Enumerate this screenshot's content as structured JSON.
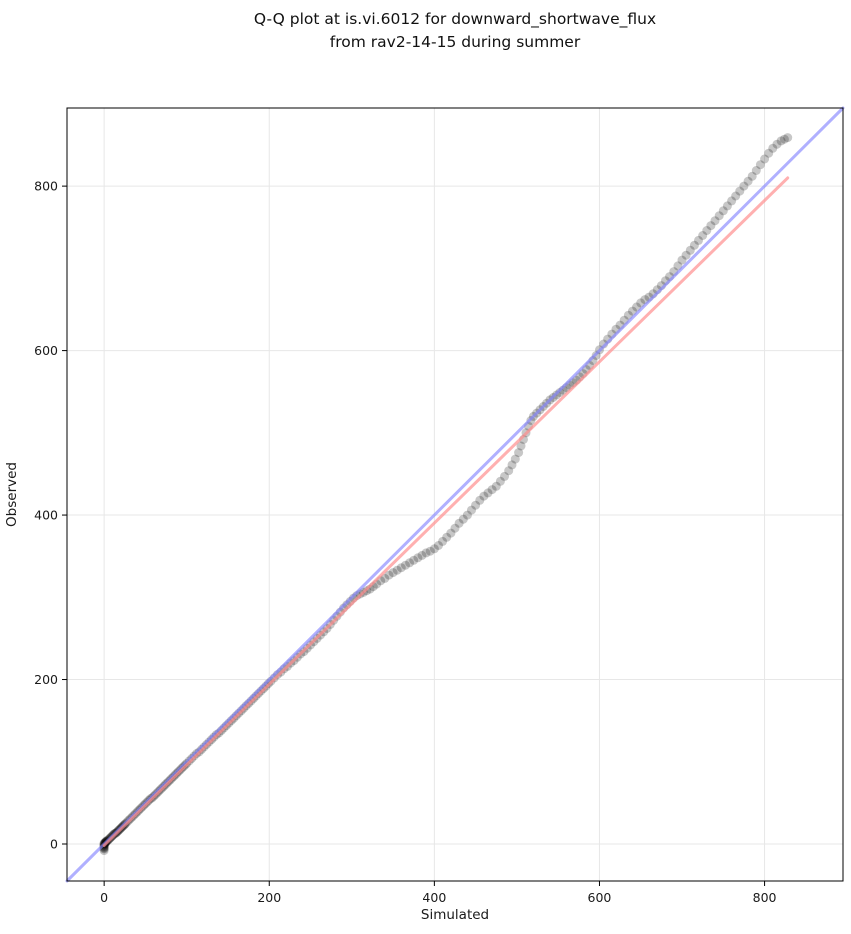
{
  "chart_data": {
    "type": "scatter",
    "title_line1": "Q-Q plot at is.vi.6012 for downward_shortwave_flux",
    "title_line2": "from rav2-14-15 during summer",
    "title": "Q-Q plot at is.vi.6012 for downward_shortwave_flux\nfrom rav2-14-15 during summer",
    "xlabel": "Simulated",
    "ylabel": "Observed",
    "xlim": [
      -45,
      895
    ],
    "ylim": [
      -45,
      895
    ],
    "xticks": [
      0,
      200,
      400,
      600,
      800
    ],
    "yticks": [
      0,
      200,
      400,
      600,
      800
    ],
    "xtick_labels": [
      "0",
      "200",
      "400",
      "600",
      "800"
    ],
    "ytick_labels": [
      "0",
      "200",
      "400",
      "600",
      "800"
    ],
    "grid": true,
    "grid_color": "#e7e7e7",
    "spine_color": "#000000",
    "background": "#ffffff",
    "series": [
      {
        "name": "qq-points",
        "type": "scatter",
        "color": "#000000",
        "alpha": 0.22,
        "radius": 4.5,
        "points": [
          [
            0,
            -8
          ],
          [
            0,
            -6
          ],
          [
            0,
            -5
          ],
          [
            0,
            -4
          ],
          [
            0,
            -3
          ],
          [
            0,
            -2
          ],
          [
            0,
            -1
          ],
          [
            0,
            0
          ],
          [
            0,
            1
          ],
          [
            1,
            0
          ],
          [
            1,
            1
          ],
          [
            1,
            2
          ],
          [
            2,
            2
          ],
          [
            2,
            3
          ],
          [
            3,
            3
          ],
          [
            3,
            4
          ],
          [
            4,
            4
          ],
          [
            5,
            5
          ],
          [
            6,
            6
          ],
          [
            7,
            7
          ],
          [
            8,
            8
          ],
          [
            9,
            9
          ],
          [
            10,
            10
          ],
          [
            11,
            11
          ],
          [
            12,
            12
          ],
          [
            13,
            13
          ],
          [
            14,
            13
          ],
          [
            15,
            14
          ],
          [
            16,
            15
          ],
          [
            17,
            16
          ],
          [
            18,
            17
          ],
          [
            19,
            18
          ],
          [
            20,
            19
          ],
          [
            21,
            20
          ],
          [
            22,
            21
          ],
          [
            23,
            22
          ],
          [
            24,
            23
          ],
          [
            25,
            24
          ],
          [
            26,
            25
          ],
          [
            28,
            27
          ],
          [
            30,
            29
          ],
          [
            32,
            31
          ],
          [
            34,
            33
          ],
          [
            36,
            35
          ],
          [
            38,
            37
          ],
          [
            40,
            39
          ],
          [
            42,
            41
          ],
          [
            44,
            43
          ],
          [
            46,
            45
          ],
          [
            48,
            47
          ],
          [
            50,
            49
          ],
          [
            52,
            51
          ],
          [
            54,
            53
          ],
          [
            56,
            55
          ],
          [
            58,
            56
          ],
          [
            60,
            58
          ],
          [
            62,
            60
          ],
          [
            64,
            62
          ],
          [
            66,
            64
          ],
          [
            68,
            66
          ],
          [
            70,
            68
          ],
          [
            72,
            70
          ],
          [
            74,
            72
          ],
          [
            76,
            74
          ],
          [
            78,
            76
          ],
          [
            80,
            78
          ],
          [
            82,
            80
          ],
          [
            84,
            82
          ],
          [
            86,
            84
          ],
          [
            88,
            86
          ],
          [
            90,
            88
          ],
          [
            92,
            90
          ],
          [
            94,
            92
          ],
          [
            96,
            94
          ],
          [
            98,
            96
          ],
          [
            100,
            98
          ],
          [
            103,
            101
          ],
          [
            106,
            104
          ],
          [
            109,
            107
          ],
          [
            112,
            110
          ],
          [
            115,
            112
          ],
          [
            118,
            115
          ],
          [
            121,
            118
          ],
          [
            124,
            121
          ],
          [
            127,
            124
          ],
          [
            130,
            127
          ],
          [
            133,
            130
          ],
          [
            136,
            133
          ],
          [
            139,
            135
          ],
          [
            142,
            138
          ],
          [
            145,
            141
          ],
          [
            148,
            144
          ],
          [
            151,
            147
          ],
          [
            154,
            150
          ],
          [
            157,
            153
          ],
          [
            160,
            156
          ],
          [
            163,
            159
          ],
          [
            166,
            162
          ],
          [
            169,
            165
          ],
          [
            172,
            168
          ],
          [
            175,
            171
          ],
          [
            178,
            174
          ],
          [
            181,
            177
          ],
          [
            184,
            180
          ],
          [
            187,
            183
          ],
          [
            190,
            186
          ],
          [
            193,
            189
          ],
          [
            196,
            192
          ],
          [
            199,
            195
          ],
          [
            202,
            198
          ],
          [
            206,
            202
          ],
          [
            210,
            206
          ],
          [
            214,
            209
          ],
          [
            218,
            213
          ],
          [
            222,
            216
          ],
          [
            226,
            220
          ],
          [
            230,
            223
          ],
          [
            234,
            227
          ],
          [
            238,
            231
          ],
          [
            242,
            234
          ],
          [
            246,
            238
          ],
          [
            250,
            242
          ],
          [
            254,
            246
          ],
          [
            258,
            250
          ],
          [
            262,
            254
          ],
          [
            266,
            258
          ],
          [
            270,
            262
          ],
          [
            274,
            267
          ],
          [
            278,
            272
          ],
          [
            282,
            277
          ],
          [
            286,
            282
          ],
          [
            290,
            287
          ],
          [
            294,
            291
          ],
          [
            298,
            295
          ],
          [
            302,
            299
          ],
          [
            306,
            302
          ],
          [
            310,
            304
          ],
          [
            314,
            306
          ],
          [
            318,
            308
          ],
          [
            322,
            310
          ],
          [
            326,
            313
          ],
          [
            330,
            316
          ],
          [
            335,
            320
          ],
          [
            340,
            323
          ],
          [
            345,
            327
          ],
          [
            350,
            330
          ],
          [
            355,
            333
          ],
          [
            360,
            336
          ],
          [
            365,
            339
          ],
          [
            370,
            342
          ],
          [
            375,
            345
          ],
          [
            380,
            348
          ],
          [
            385,
            351
          ],
          [
            390,
            354
          ],
          [
            395,
            356
          ],
          [
            400,
            359
          ],
          [
            405,
            363
          ],
          [
            410,
            368
          ],
          [
            415,
            373
          ],
          [
            420,
            378
          ],
          [
            425,
            384
          ],
          [
            430,
            390
          ],
          [
            435,
            395
          ],
          [
            440,
            400
          ],
          [
            445,
            406
          ],
          [
            450,
            412
          ],
          [
            455,
            418
          ],
          [
            460,
            423
          ],
          [
            465,
            427
          ],
          [
            470,
            431
          ],
          [
            475,
            435
          ],
          [
            480,
            441
          ],
          [
            485,
            447
          ],
          [
            490,
            454
          ],
          [
            494,
            461
          ],
          [
            498,
            468
          ],
          [
            502,
            476
          ],
          [
            505,
            484
          ],
          [
            508,
            492
          ],
          [
            511,
            500
          ],
          [
            514,
            508
          ],
          [
            517,
            515
          ],
          [
            520,
            520
          ],
          [
            524,
            524
          ],
          [
            528,
            528
          ],
          [
            532,
            532
          ],
          [
            536,
            536
          ],
          [
            540,
            540
          ],
          [
            544,
            543
          ],
          [
            548,
            546
          ],
          [
            552,
            549
          ],
          [
            556,
            552
          ],
          [
            560,
            555
          ],
          [
            564,
            558
          ],
          [
            568,
            561
          ],
          [
            572,
            564
          ],
          [
            576,
            568
          ],
          [
            580,
            572
          ],
          [
            584,
            577
          ],
          [
            588,
            582
          ],
          [
            592,
            588
          ],
          [
            596,
            594
          ],
          [
            600,
            601
          ],
          [
            605,
            608
          ],
          [
            610,
            614
          ],
          [
            615,
            620
          ],
          [
            620,
            626
          ],
          [
            625,
            631
          ],
          [
            630,
            637
          ],
          [
            635,
            643
          ],
          [
            640,
            648
          ],
          [
            645,
            653
          ],
          [
            650,
            658
          ],
          [
            655,
            662
          ],
          [
            660,
            665
          ],
          [
            665,
            669
          ],
          [
            670,
            674
          ],
          [
            675,
            679
          ],
          [
            680,
            685
          ],
          [
            685,
            690
          ],
          [
            690,
            696
          ],
          [
            695,
            703
          ],
          [
            700,
            710
          ],
          [
            705,
            716
          ],
          [
            710,
            722
          ],
          [
            715,
            728
          ],
          [
            720,
            734
          ],
          [
            725,
            740
          ],
          [
            730,
            746
          ],
          [
            735,
            752
          ],
          [
            740,
            758
          ],
          [
            745,
            764
          ],
          [
            750,
            770
          ],
          [
            755,
            776
          ],
          [
            760,
            782
          ],
          [
            765,
            788
          ],
          [
            770,
            794
          ],
          [
            775,
            800
          ],
          [
            780,
            806
          ],
          [
            785,
            812
          ],
          [
            790,
            819
          ],
          [
            795,
            826
          ],
          [
            800,
            833
          ],
          [
            805,
            840
          ],
          [
            810,
            846
          ],
          [
            815,
            851
          ],
          [
            820,
            855
          ],
          [
            824,
            857
          ],
          [
            828,
            859
          ]
        ]
      },
      {
        "name": "identity-line",
        "type": "line",
        "color": "#8585ff",
        "alpha": 0.65,
        "width": 3,
        "points": [
          [
            -45,
            -45
          ],
          [
            895,
            895
          ]
        ]
      },
      {
        "name": "fit-line",
        "type": "line",
        "color": "#ff8f8f",
        "alpha": 0.7,
        "width": 3,
        "points": [
          [
            0,
            -2
          ],
          [
            828,
            810
          ]
        ]
      }
    ]
  }
}
